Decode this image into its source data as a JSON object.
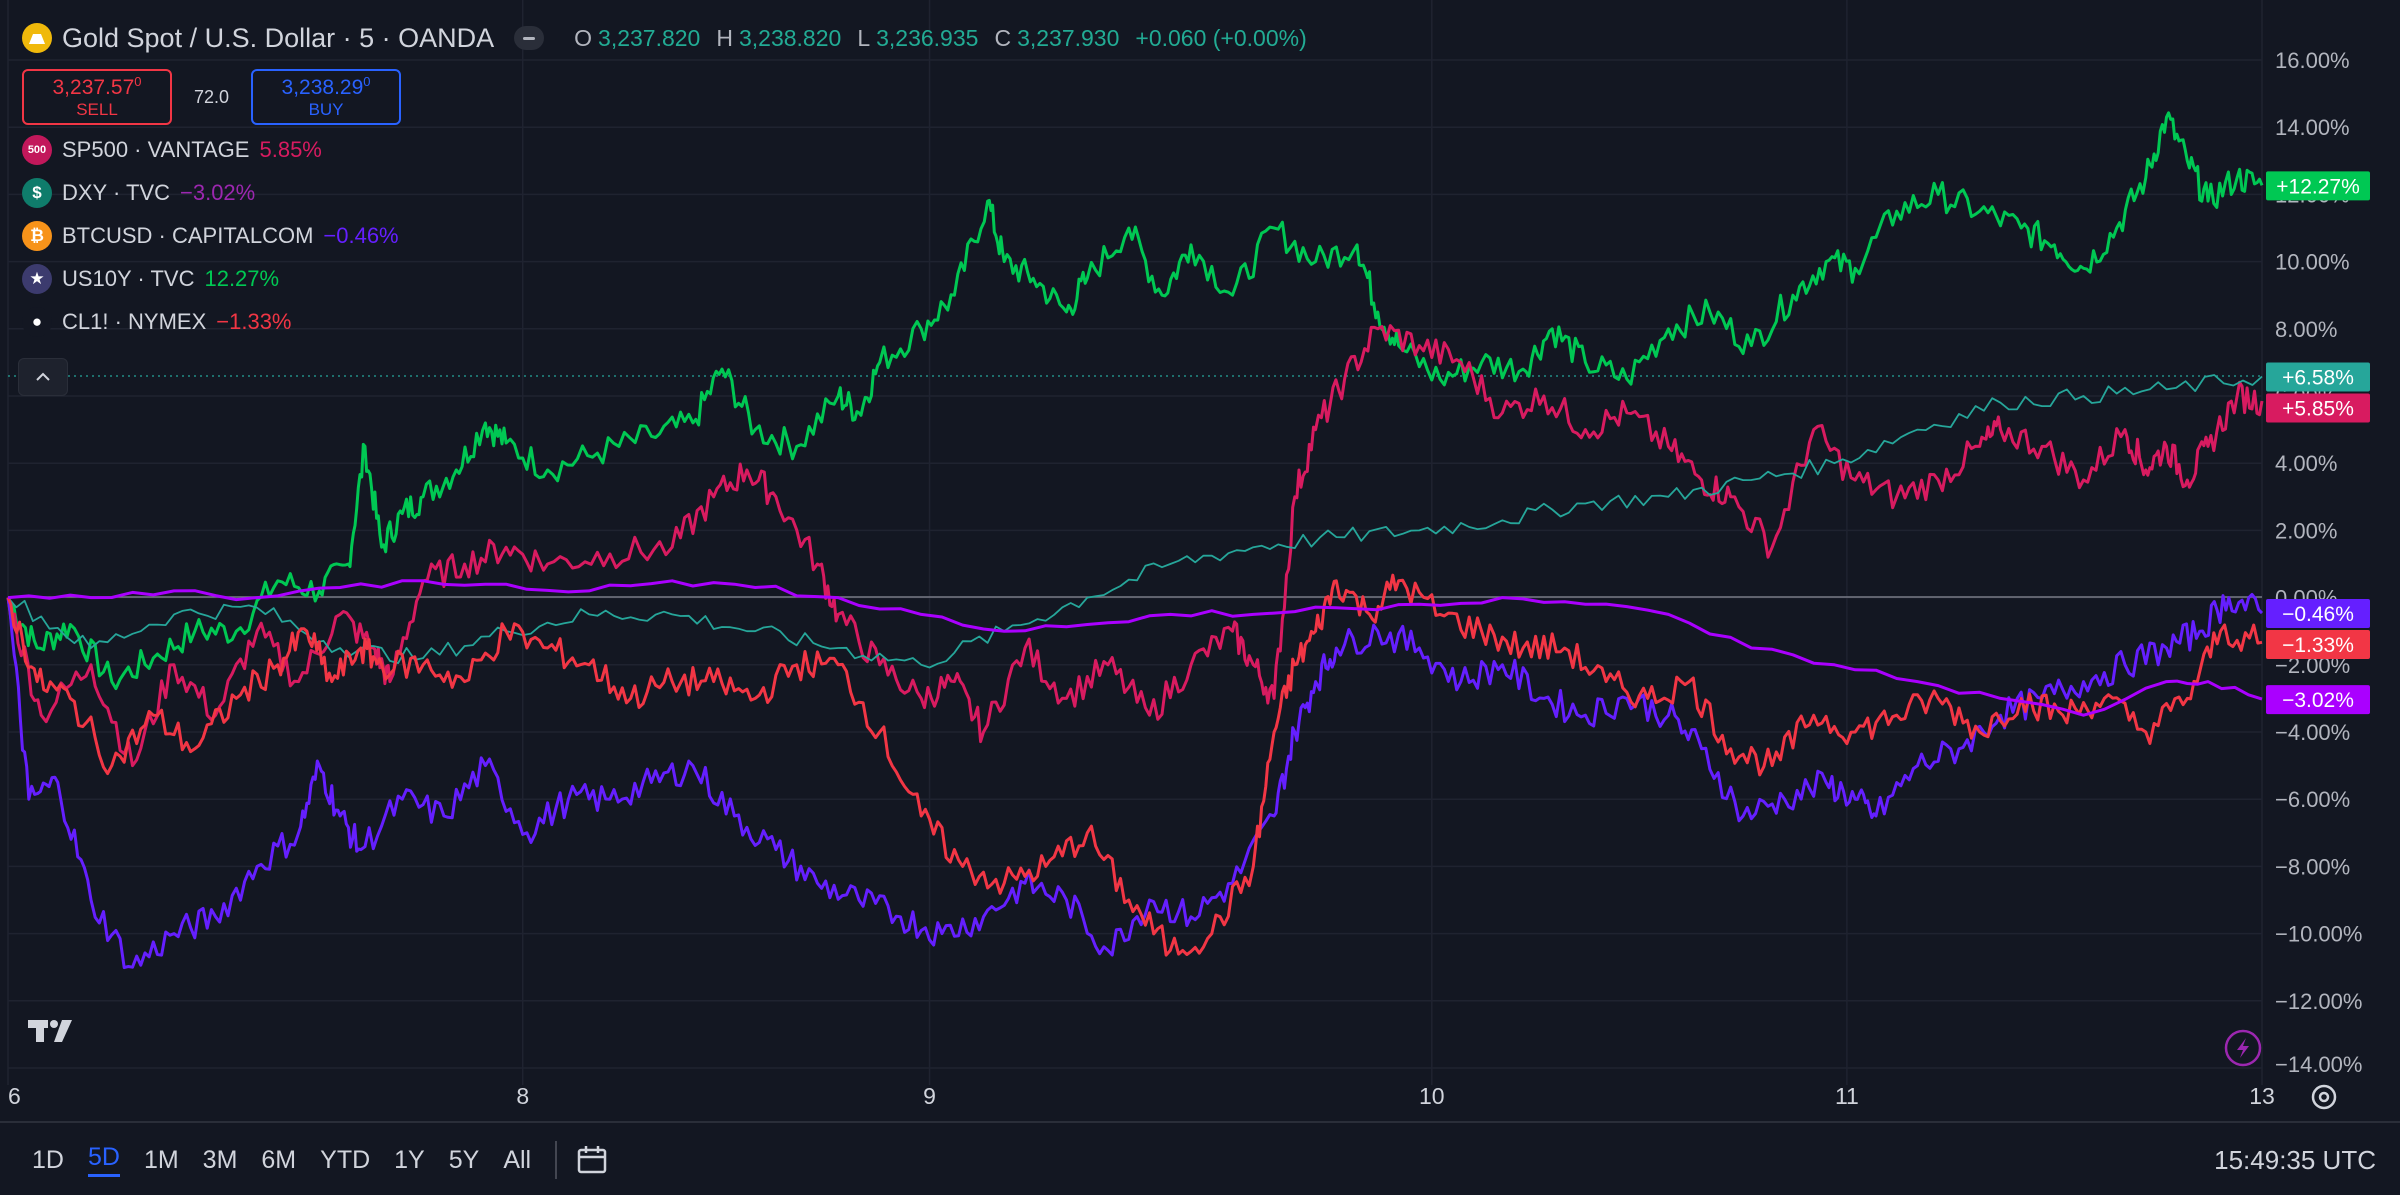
{
  "header": {
    "title": "Gold Spot / U.S. Dollar · 5 · OANDA",
    "ohlc": [
      {
        "k": "O",
        "v": "3,237.820"
      },
      {
        "k": "H",
        "v": "3,238.820"
      },
      {
        "k": "L",
        "v": "3,236.935"
      },
      {
        "k": "C",
        "v": "3,237.930"
      }
    ],
    "change": "+0.060 (+0.00%)",
    "sell_price": "3,237.57",
    "sell_sup": "0",
    "sell_label": "SELL",
    "spread": "72.0",
    "buy_price": "3,238.29",
    "buy_sup": "0",
    "buy_label": "BUY"
  },
  "comparisons": [
    {
      "icon": "500",
      "name": "SP500 · VANTAGE",
      "value": "5.85%",
      "color": "#d81b60",
      "icon_bg": "#c2185b"
    },
    {
      "icon": "$",
      "name": "DXY · TVC",
      "value": "−3.02%",
      "color": "#9c27b0",
      "icon_bg": "#0f7c6b"
    },
    {
      "icon": "₿",
      "name": "BTCUSD · CAPITALCOM",
      "value": "−0.46%",
      "color": "#651fff",
      "icon_bg": "#f7931a"
    },
    {
      "icon": "★",
      "name": "US10Y · TVC",
      "value": "12.27%",
      "color": "#00c853",
      "icon_bg": "#3c3b6e"
    },
    {
      "icon": "●",
      "name": "CL1! · NYMEX",
      "value": "−1.33%",
      "color": "#f23645",
      "icon_bg": "#131722"
    }
  ],
  "footer": {
    "ranges": [
      "1D",
      "5D",
      "1M",
      "3M",
      "6M",
      "YTD",
      "1Y",
      "5Y",
      "All"
    ],
    "active_range": "5D",
    "time": "15:49:35 UTC"
  },
  "colors": {
    "gold": "#26a69a",
    "sp500": "#d81b60",
    "dxy": "#aa00ff",
    "btc": "#651fff",
    "us10y": "#00c853",
    "cl1": "#f23645"
  },
  "chart_data": {
    "type": "line",
    "y_unit": "%",
    "y_ticks": [
      "16.00%",
      "14.00%",
      "12.00%",
      "10.00%",
      "8.00%",
      "6.00%",
      "4.00%",
      "2.00%",
      "0.00%",
      "−2.00%",
      "−4.00%",
      "−6.00%",
      "−8.00%",
      "−10.00%",
      "−12.00%",
      "−14.00%"
    ],
    "y_tick_values": [
      16,
      14,
      12,
      10,
      8,
      6,
      4,
      2,
      0,
      -2,
      -4,
      -6,
      -8,
      -10,
      -12,
      -14
    ],
    "ylim": [
      -14,
      16
    ],
    "x_ticks": [
      "6",
      "8",
      "9",
      "10",
      "11",
      "13"
    ],
    "x_tick_values": [
      0,
      1.24,
      2.22,
      3.43,
      4.43,
      5.43
    ],
    "xlim": [
      0,
      5.43
    ],
    "grid": true,
    "series": [
      {
        "name": "US10Y · TVC",
        "key": "us10y",
        "last_label": "+12.27%",
        "x": [
          0,
          0.07,
          0.15,
          0.25,
          0.35,
          0.45,
          0.55,
          0.65,
          0.75,
          0.82,
          0.86,
          0.9,
          0.95,
          1.0,
          1.08,
          1.15,
          1.2,
          1.3,
          1.42,
          1.55,
          1.65,
          1.72,
          1.8,
          1.9,
          2.0,
          2.05,
          2.1,
          2.2,
          2.28,
          2.36,
          2.4,
          2.47,
          2.55,
          2.6,
          2.7,
          2.78,
          2.85,
          2.95,
          3.05,
          3.15,
          3.25,
          3.3,
          3.35,
          3.45,
          3.55,
          3.65,
          3.72,
          3.8,
          3.9,
          4.0,
          4.1,
          4.2,
          4.3,
          4.38,
          4.45,
          4.55,
          4.65,
          4.75,
          4.85,
          4.93,
          5.0,
          5.08,
          5.15,
          5.2,
          5.25,
          5.3,
          5.37,
          5.43
        ],
        "values": [
          0,
          -1.5,
          -0.8,
          -2.5,
          -1.8,
          -1.0,
          -1.0,
          0.5,
          0.2,
          1.0,
          4.5,
          1.5,
          2.5,
          3.0,
          3.8,
          5.2,
          4.6,
          3.8,
          4.3,
          4.8,
          5.2,
          6.8,
          5.0,
          4.5,
          6.0,
          5.5,
          7.0,
          8.0,
          9.0,
          11.8,
          10.0,
          9.5,
          8.5,
          9.5,
          11.0,
          9.0,
          10.5,
          9.0,
          11.0,
          10.0,
          10.5,
          8.5,
          7.5,
          6.5,
          7.0,
          6.8,
          8.0,
          7.0,
          6.5,
          8.0,
          8.5,
          7.5,
          9.0,
          10.0,
          9.8,
          11.5,
          12.0,
          11.5,
          11.0,
          10.5,
          9.8,
          11.0,
          12.5,
          14.3,
          13.0,
          11.8,
          12.5,
          12.27
        ]
      },
      {
        "name": "SP500 · VANTAGE",
        "key": "sp500",
        "last_label": "+5.85%",
        "x": [
          0,
          0.08,
          0.2,
          0.3,
          0.4,
          0.5,
          0.6,
          0.7,
          0.8,
          0.88,
          0.92,
          1.0,
          1.1,
          1.2,
          1.3,
          1.45,
          1.6,
          1.7,
          1.78,
          1.85,
          1.95,
          2.0,
          2.1,
          2.2,
          2.28,
          2.35,
          2.45,
          2.55,
          2.65,
          2.75,
          2.85,
          2.95,
          3.0,
          3.05,
          3.1,
          3.15,
          3.22,
          3.3,
          3.4,
          3.5,
          3.6,
          3.7,
          3.8,
          3.9,
          4.0,
          4.08,
          4.15,
          4.25,
          4.35,
          4.45,
          4.55,
          4.65,
          4.75,
          4.8,
          4.9,
          5.0,
          5.1,
          5.15,
          5.2,
          5.25,
          5.3,
          5.37,
          5.43
        ],
        "values": [
          0,
          -3.5,
          -2.0,
          -5.0,
          -2.0,
          -3.5,
          -1.0,
          -2.5,
          -0.5,
          -1.5,
          -2.5,
          0.5,
          1.0,
          1.5,
          1.0,
          1.3,
          1.5,
          3.0,
          3.8,
          3.0,
          1.0,
          -0.5,
          -2.0,
          -3.0,
          -2.5,
          -4.0,
          -1.5,
          -3.0,
          -2.0,
          -3.5,
          -2.0,
          -1.0,
          -2.0,
          -3.0,
          3.0,
          5.0,
          6.5,
          8.0,
          7.5,
          7.0,
          5.5,
          6.0,
          5.0,
          5.5,
          4.5,
          3.5,
          3.0,
          1.5,
          5.0,
          3.5,
          3.0,
          3.5,
          4.5,
          5.0,
          4.5,
          3.5,
          5.0,
          3.8,
          4.5,
          3.5,
          4.5,
          6.0,
          5.85
        ]
      },
      {
        "name": "GOLD",
        "key": "gold",
        "last_label": "+6.58%",
        "x": [
          0,
          0.2,
          0.4,
          0.6,
          0.8,
          1.0,
          1.2,
          1.4,
          1.6,
          1.8,
          2.0,
          2.2,
          2.4,
          2.6,
          2.8,
          3.0,
          3.2,
          3.4,
          3.6,
          3.8,
          4.0,
          4.2,
          4.4,
          4.6,
          4.8,
          5.0,
          5.2,
          5.43
        ],
        "values": [
          0,
          -1.5,
          -0.5,
          -0.3,
          -1.5,
          -1.8,
          -1.0,
          -0.5,
          -0.5,
          -1.0,
          -1.5,
          -2.0,
          -1.0,
          0.0,
          1.0,
          1.5,
          1.8,
          2.0,
          2.3,
          2.8,
          3.0,
          3.5,
          4.0,
          5.0,
          5.8,
          6.0,
          6.2,
          6.58
        ]
      },
      {
        "name": "BTCUSD · CAPITALCOM",
        "key": "btc",
        "last_label": "−0.46%",
        "x": [
          0,
          0.05,
          0.12,
          0.2,
          0.3,
          0.4,
          0.5,
          0.6,
          0.7,
          0.75,
          0.8,
          0.85,
          0.95,
          1.05,
          1.15,
          1.25,
          1.35,
          1.45,
          1.55,
          1.65,
          1.75,
          1.85,
          1.95,
          2.05,
          2.15,
          2.25,
          2.35,
          2.45,
          2.55,
          2.65,
          2.75,
          2.85,
          2.95,
          3.05,
          3.1,
          3.15,
          3.2,
          3.3,
          3.4,
          3.5,
          3.6,
          3.7,
          3.8,
          3.9,
          4.0,
          4.08,
          4.18,
          4.28,
          4.38,
          4.45,
          4.5,
          4.6,
          4.7,
          4.8,
          4.9,
          5.0,
          5.1,
          5.2,
          5.28,
          5.35,
          5.43
        ],
        "values": [
          0,
          -6.0,
          -5.5,
          -9.0,
          -11.0,
          -10.0,
          -9.5,
          -8.0,
          -7.0,
          -5.0,
          -6.5,
          -7.5,
          -6.0,
          -6.5,
          -5.0,
          -7.0,
          -6.0,
          -6.0,
          -5.5,
          -5.0,
          -6.5,
          -7.5,
          -8.5,
          -9.0,
          -9.5,
          -10.0,
          -9.5,
          -8.5,
          -9.0,
          -10.5,
          -9.0,
          -9.5,
          -8.5,
          -6.5,
          -4.0,
          -2.5,
          -1.5,
          -1.0,
          -1.5,
          -2.5,
          -2.0,
          -3.0,
          -3.5,
          -3.0,
          -3.5,
          -4.5,
          -6.5,
          -6.0,
          -5.5,
          -6.0,
          -6.5,
          -5.0,
          -4.5,
          -3.5,
          -3.0,
          -2.5,
          -2.0,
          -1.5,
          -1.0,
          0.0,
          -0.46
        ]
      },
      {
        "name": "CL1! · NYMEX",
        "key": "cl1",
        "last_label": "−1.33%",
        "x": [
          0,
          0.07,
          0.15,
          0.25,
          0.35,
          0.45,
          0.55,
          0.65,
          0.72,
          0.78,
          0.85,
          0.9,
          1.0,
          1.1,
          1.2,
          1.3,
          1.4,
          1.5,
          1.6,
          1.7,
          1.8,
          1.9,
          2.0,
          2.1,
          2.2,
          2.3,
          2.4,
          2.5,
          2.6,
          2.7,
          2.8,
          2.9,
          3.0,
          3.05,
          3.1,
          3.15,
          3.2,
          3.28,
          3.35,
          3.45,
          3.55,
          3.65,
          3.75,
          3.85,
          3.95,
          4.05,
          4.15,
          4.25,
          4.35,
          4.45,
          4.55,
          4.65,
          4.75,
          4.85,
          4.95,
          5.05,
          5.15,
          5.25,
          5.33,
          5.43
        ],
        "values": [
          0,
          -2.5,
          -3.0,
          -5.0,
          -3.5,
          -4.5,
          -3.0,
          -2.0,
          -1.0,
          -2.5,
          -1.5,
          -2.0,
          -2.0,
          -2.5,
          -1.0,
          -1.5,
          -2.0,
          -3.0,
          -2.5,
          -2.5,
          -3.0,
          -2.0,
          -2.0,
          -4.0,
          -6.5,
          -8.0,
          -8.5,
          -8.0,
          -7.0,
          -9.0,
          -10.5,
          -10.0,
          -8.0,
          -4.0,
          -2.0,
          -1.0,
          0.5,
          -0.5,
          0.5,
          -0.5,
          -1.0,
          -1.5,
          -1.5,
          -2.5,
          -3.0,
          -2.5,
          -4.5,
          -5.0,
          -3.5,
          -4.0,
          -3.5,
          -3.0,
          -4.0,
          -3.0,
          -3.5,
          -3.0,
          -4.0,
          -3.0,
          -1.0,
          -1.33
        ]
      },
      {
        "name": "DXY · TVC",
        "key": "dxy",
        "last_label": "−3.02%",
        "x": [
          0,
          0.2,
          0.4,
          0.6,
          0.8,
          1.0,
          1.2,
          1.4,
          1.6,
          1.8,
          2.0,
          2.2,
          2.4,
          2.6,
          2.8,
          3.0,
          3.2,
          3.4,
          3.6,
          3.8,
          4.0,
          4.2,
          4.4,
          4.6,
          4.8,
          5.0,
          5.2,
          5.3,
          5.43
        ],
        "values": [
          0,
          0.0,
          0.2,
          0.0,
          0.3,
          0.5,
          0.4,
          0.2,
          0.5,
          0.3,
          0.0,
          -0.5,
          -1.0,
          -0.8,
          -0.5,
          -0.5,
          -0.3,
          -0.2,
          0.0,
          -0.2,
          -0.5,
          -1.5,
          -2.0,
          -2.5,
          -3.0,
          -3.5,
          -2.5,
          -2.5,
          -3.02
        ]
      }
    ]
  }
}
